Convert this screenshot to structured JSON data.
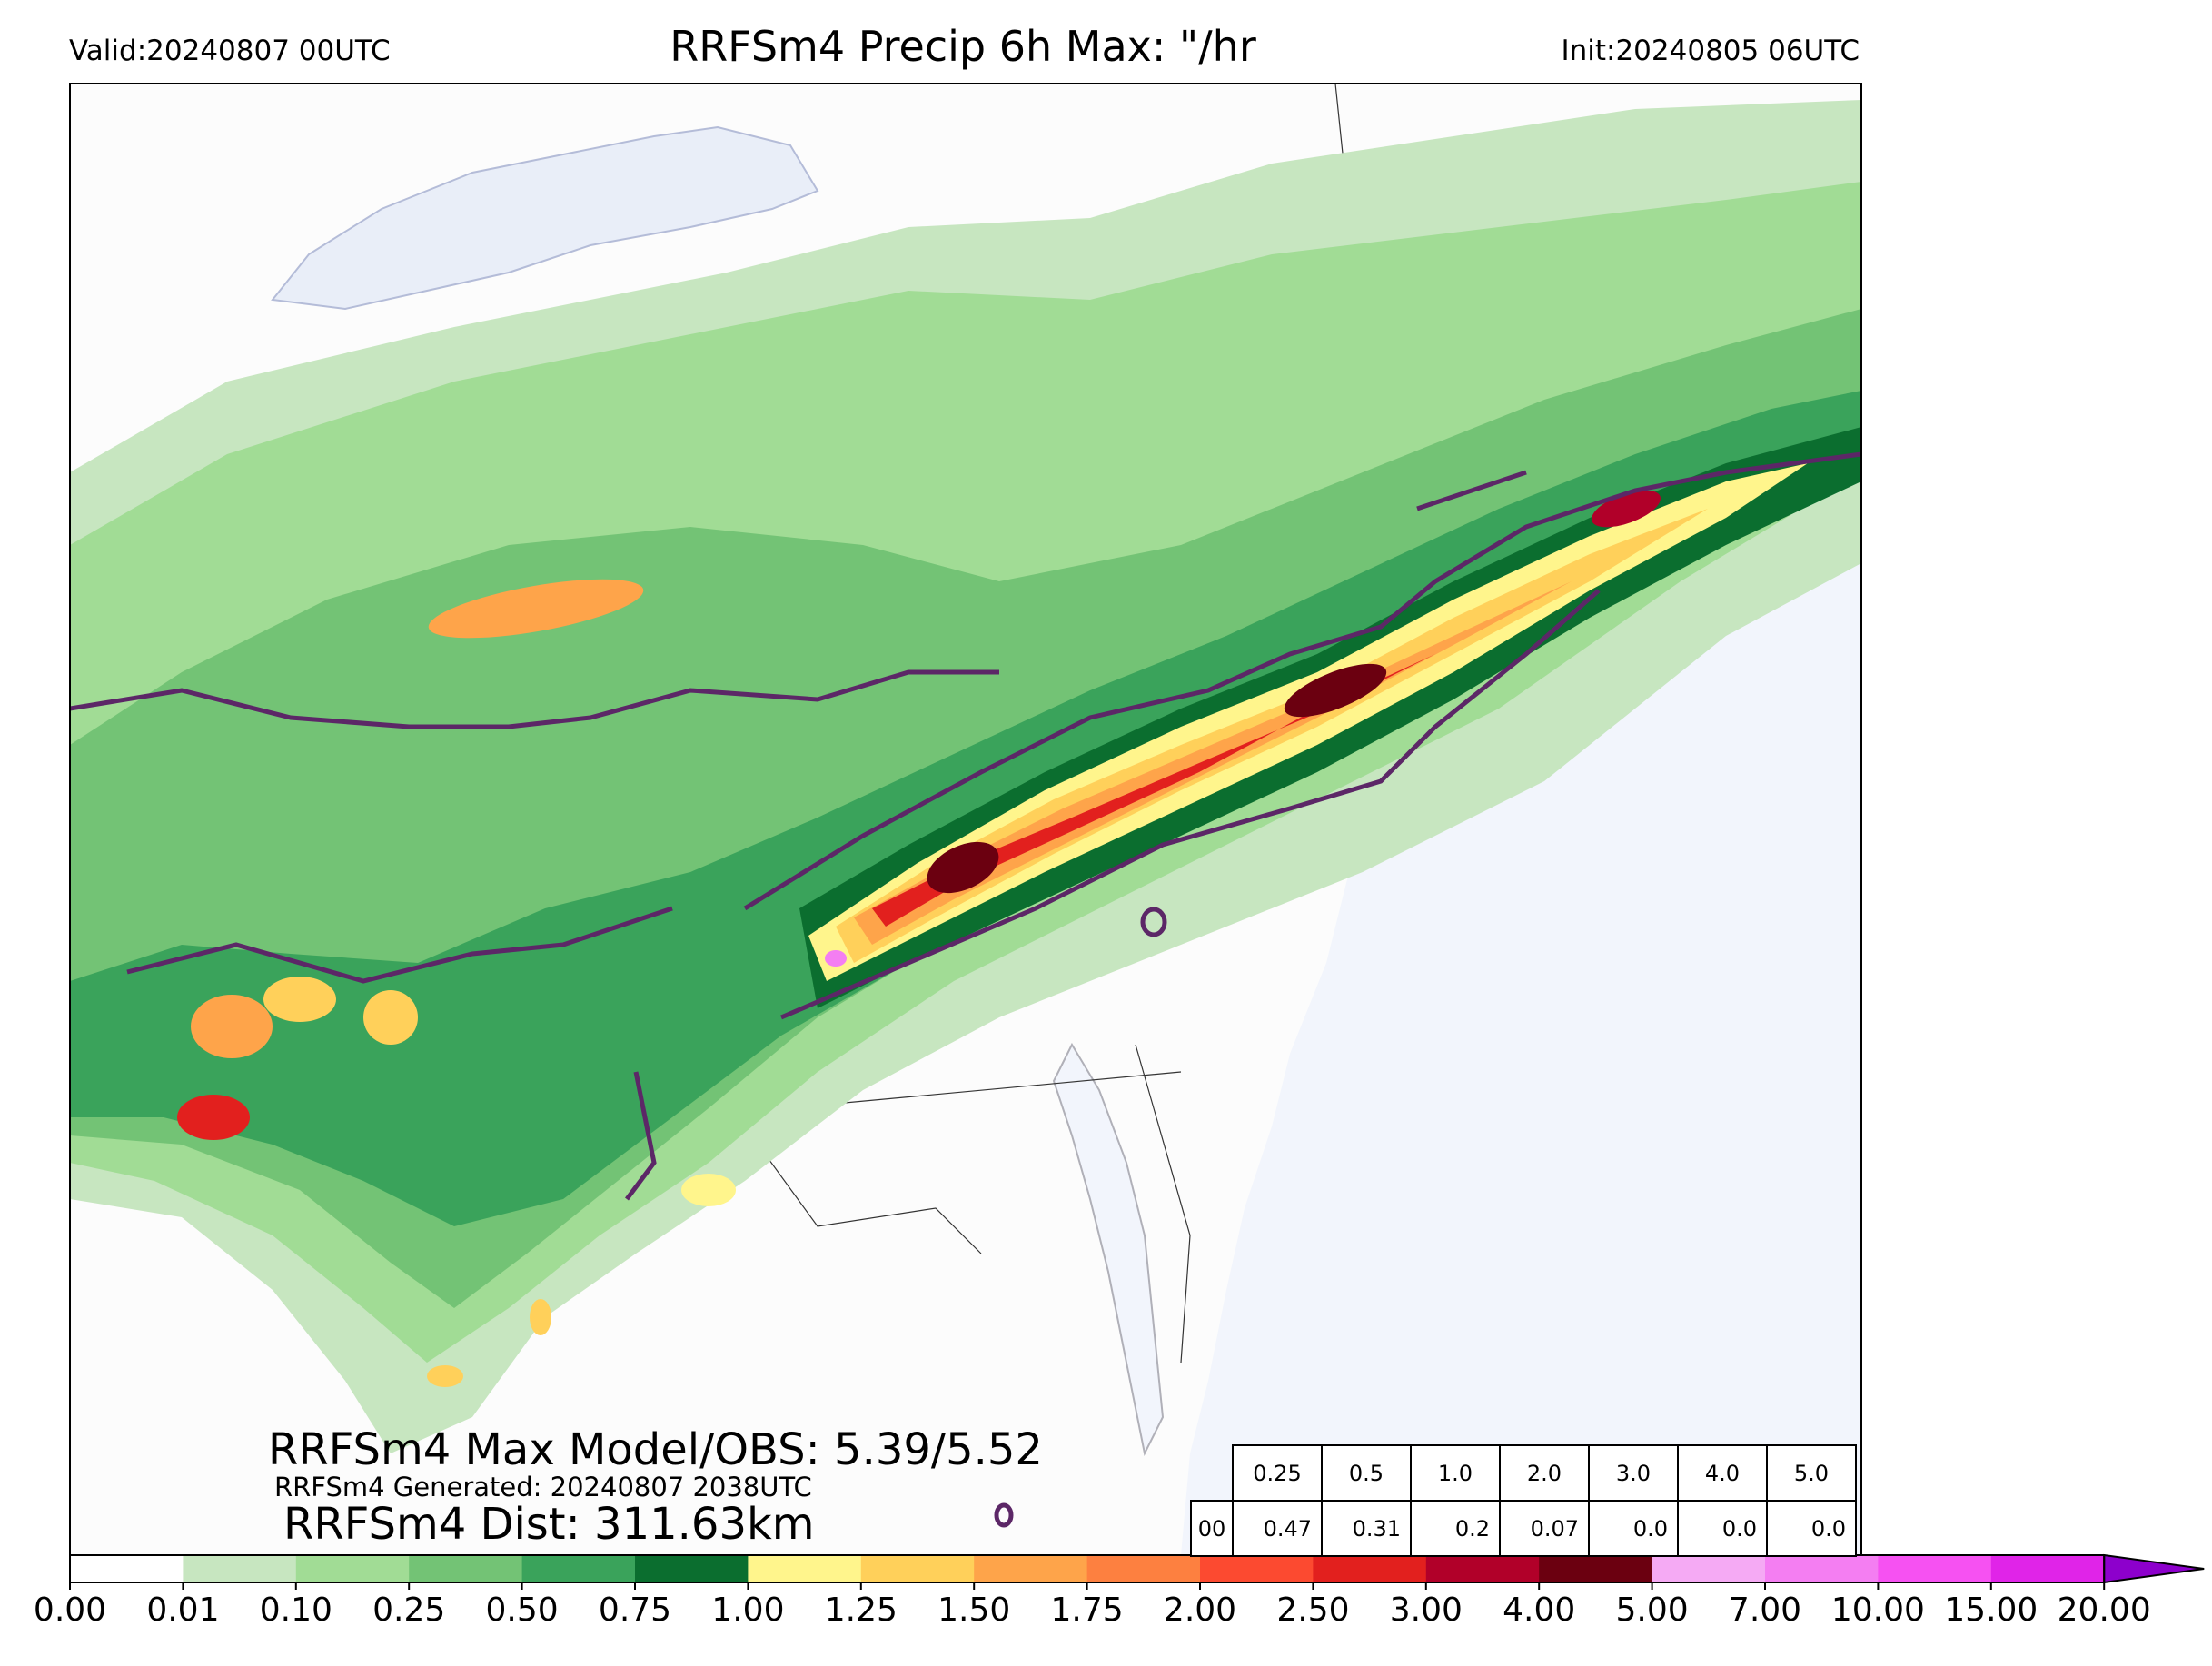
{
  "header": {
    "valid": "Valid:20240807 00UTC",
    "title": "RRFSm4 Precip 6h Max: \"/hr",
    "init": "Init:20240805 06UTC"
  },
  "stats": {
    "max_line": "RRFSm4 Max Model/OBS: 5.39/5.52",
    "generated_line": "RRFSm4 Generated: 20240807 2038UTC",
    "dist_line": "RRFSm4 Dist: 311.63km"
  },
  "threshold_table": {
    "thresholds": [
      "0.25",
      "0.5",
      "1.0",
      "2.0",
      "3.0",
      "4.0",
      "5.0"
    ],
    "row_label": "00",
    "values": [
      "0.47",
      "0.31",
      "0.2",
      "0.07",
      "0.0",
      "0.0",
      "0.0"
    ]
  },
  "colorbar": {
    "ticks": [
      "0.00",
      "0.01",
      "0.10",
      "0.25",
      "0.50",
      "0.75",
      "1.00",
      "1.25",
      "1.50",
      "1.75",
      "2.00",
      "2.50",
      "3.00",
      "4.00",
      "5.00",
      "7.00",
      "10.00",
      "15.00",
      "20.00"
    ],
    "colors": [
      "#ffffff",
      "#c7e6c0",
      "#a1dc95",
      "#73c375",
      "#3aa35b",
      "#0b6e2f",
      "#fff58c",
      "#ffd05a",
      "#fea44a",
      "#fd8040",
      "#fc4a30",
      "#e2201e",
      "#b10029",
      "#6b0010",
      "#f5aaf4",
      "#f47ef2",
      "#f651f2",
      "#e024e8",
      "#b50ce0",
      "#8d00cc"
    ]
  },
  "map": {
    "contour_color": "#5c2767",
    "water_color": "#f2f5fc",
    "land_color": "#fcfcfc"
  }
}
